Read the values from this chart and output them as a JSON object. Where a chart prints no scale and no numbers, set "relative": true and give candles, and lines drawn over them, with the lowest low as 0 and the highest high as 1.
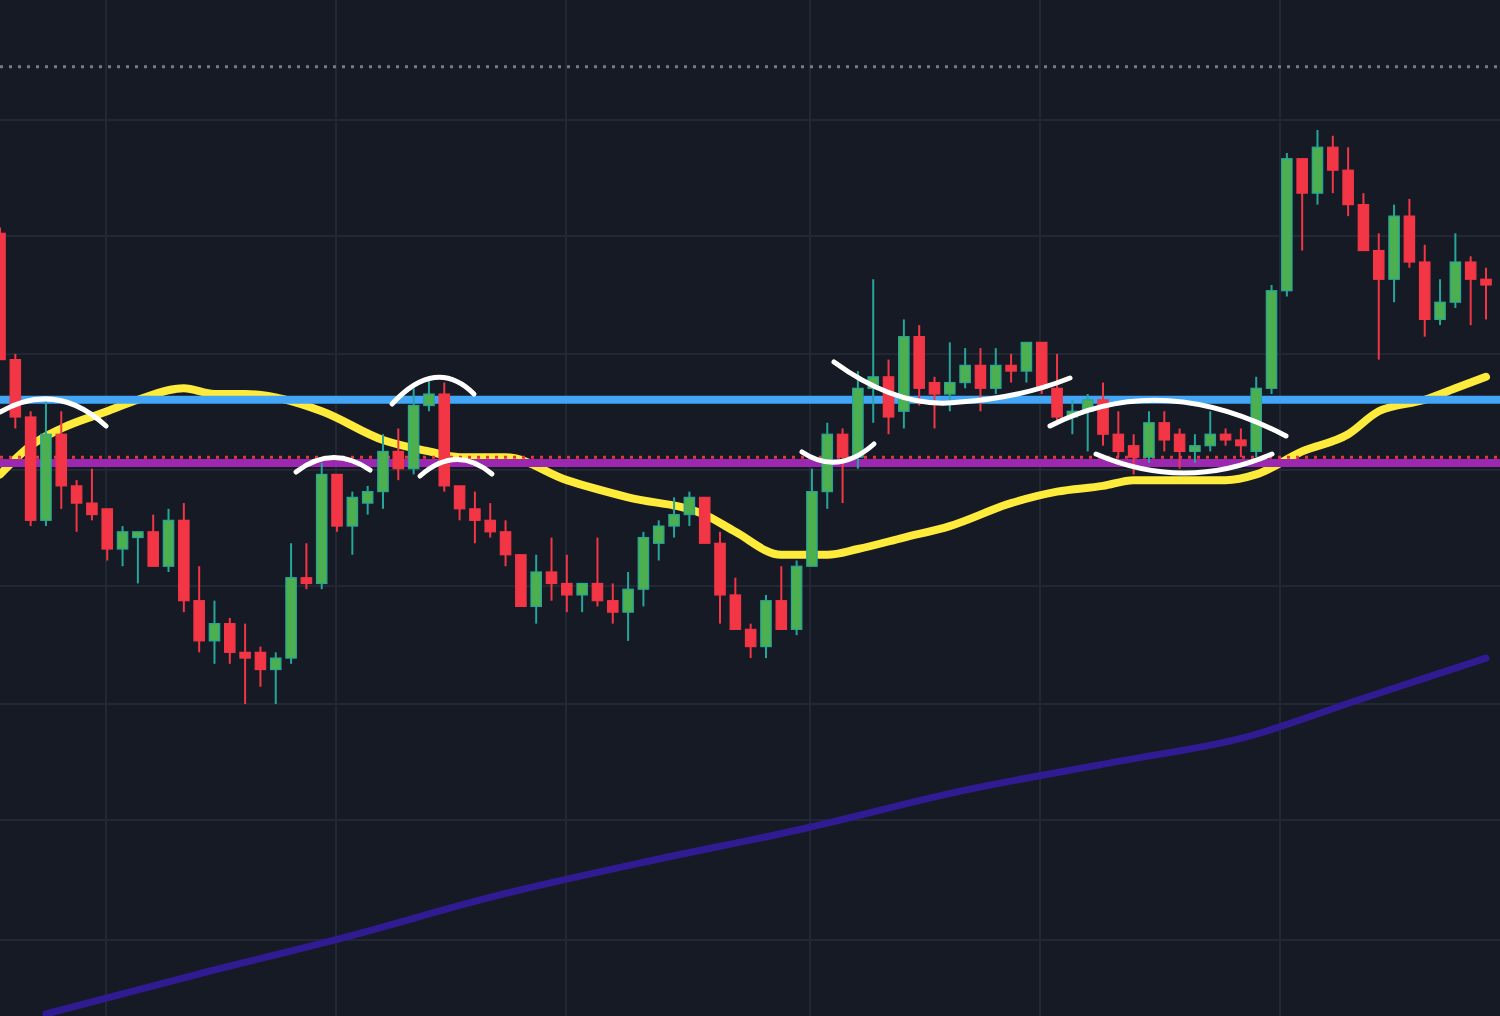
{
  "chart_data": {
    "type": "candlestick",
    "relative": true,
    "grid": true,
    "categories": [
      null,
      null,
      null,
      null,
      null,
      null,
      null,
      null,
      null,
      null,
      null,
      null,
      null,
      null,
      null,
      null,
      null,
      null,
      null,
      null,
      null,
      null,
      null,
      null,
      null,
      null,
      null,
      null,
      null,
      null,
      null,
      null,
      null,
      null,
      null,
      null,
      null,
      null,
      null,
      null,
      null,
      null,
      null,
      null,
      null,
      null,
      null,
      null,
      null,
      null,
      null,
      null,
      null,
      null,
      null,
      null,
      null,
      null,
      null,
      null,
      null,
      null,
      null,
      null,
      null,
      null,
      null,
      null,
      null,
      null,
      null,
      null,
      null,
      null,
      null,
      null,
      null,
      null,
      null,
      null,
      null,
      null,
      null,
      null,
      null,
      null,
      null,
      null,
      null,
      null,
      null,
      null,
      null,
      null,
      null,
      null,
      null,
      null
    ],
    "ohlc": [
      [
        0.82,
        0.83,
        0.6,
        0.6
      ],
      [
        0.6,
        0.61,
        0.48,
        0.5
      ],
      [
        0.5,
        0.51,
        0.31,
        0.32
      ],
      [
        0.32,
        0.53,
        0.31,
        0.47
      ],
      [
        0.47,
        0.51,
        0.34,
        0.38
      ],
      [
        0.38,
        0.39,
        0.3,
        0.35
      ],
      [
        0.35,
        0.41,
        0.32,
        0.33
      ],
      [
        0.34,
        0.34,
        0.25,
        0.27
      ],
      [
        0.27,
        0.31,
        0.24,
        0.3
      ],
      [
        0.29,
        0.3,
        0.21,
        0.3
      ],
      [
        0.3,
        0.33,
        0.24,
        0.24
      ],
      [
        0.24,
        0.34,
        0.23,
        0.32
      ],
      [
        0.32,
        0.35,
        0.16,
        0.18
      ],
      [
        0.18,
        0.24,
        0.09,
        0.11
      ],
      [
        0.11,
        0.18,
        0.07,
        0.14
      ],
      [
        0.14,
        0.15,
        0.07,
        0.09
      ],
      [
        0.09,
        0.14,
        0.0,
        0.08
      ],
      [
        0.09,
        0.1,
        0.03,
        0.06
      ],
      [
        0.06,
        0.09,
        0.0,
        0.08
      ],
      [
        0.08,
        0.28,
        0.07,
        0.22
      ],
      [
        0.22,
        0.28,
        0.2,
        0.21
      ],
      [
        0.21,
        0.42,
        0.2,
        0.4
      ],
      [
        0.4,
        0.4,
        0.3,
        0.31
      ],
      [
        0.31,
        0.37,
        0.26,
        0.36
      ],
      [
        0.35,
        0.38,
        0.33,
        0.37
      ],
      [
        0.37,
        0.47,
        0.34,
        0.44
      ],
      [
        0.44,
        0.48,
        0.39,
        0.41
      ],
      [
        0.41,
        0.55,
        0.4,
        0.52
      ],
      [
        0.52,
        0.57,
        0.51,
        0.54
      ],
      [
        0.54,
        0.56,
        0.37,
        0.38
      ],
      [
        0.38,
        0.38,
        0.32,
        0.34
      ],
      [
        0.34,
        0.37,
        0.28,
        0.32
      ],
      [
        0.32,
        0.35,
        0.29,
        0.3
      ],
      [
        0.3,
        0.32,
        0.24,
        0.26
      ],
      [
        0.26,
        0.26,
        0.17,
        0.17
      ],
      [
        0.17,
        0.26,
        0.14,
        0.23
      ],
      [
        0.23,
        0.29,
        0.18,
        0.21
      ],
      [
        0.21,
        0.26,
        0.16,
        0.19
      ],
      [
        0.19,
        0.21,
        0.16,
        0.21
      ],
      [
        0.21,
        0.29,
        0.17,
        0.18
      ],
      [
        0.18,
        0.21,
        0.14,
        0.16
      ],
      [
        0.16,
        0.23,
        0.11,
        0.2
      ],
      [
        0.2,
        0.3,
        0.17,
        0.29
      ],
      [
        0.28,
        0.32,
        0.25,
        0.31
      ],
      [
        0.31,
        0.36,
        0.29,
        0.33
      ],
      [
        0.33,
        0.37,
        0.31,
        0.36
      ],
      [
        0.36,
        0.36,
        0.28,
        0.28
      ],
      [
        0.28,
        0.3,
        0.14,
        0.19
      ],
      [
        0.19,
        0.22,
        0.13,
        0.13
      ],
      [
        0.13,
        0.14,
        0.08,
        0.1
      ],
      [
        0.1,
        0.19,
        0.08,
        0.18
      ],
      [
        0.18,
        0.24,
        0.13,
        0.13
      ],
      [
        0.13,
        0.25,
        0.12,
        0.24
      ],
      [
        0.24,
        0.41,
        0.24,
        0.37
      ],
      [
        0.37,
        0.49,
        0.34,
        0.47
      ],
      [
        0.47,
        0.48,
        0.35,
        0.43
      ],
      [
        0.43,
        0.58,
        0.41,
        0.55
      ],
      [
        0.55,
        0.74,
        0.49,
        0.57
      ],
      [
        0.57,
        0.6,
        0.47,
        0.5
      ],
      [
        0.51,
        0.67,
        0.48,
        0.64
      ],
      [
        0.64,
        0.66,
        0.52,
        0.55
      ],
      [
        0.56,
        0.57,
        0.48,
        0.54
      ],
      [
        0.54,
        0.63,
        0.51,
        0.56
      ],
      [
        0.56,
        0.62,
        0.55,
        0.59
      ],
      [
        0.59,
        0.62,
        0.51,
        0.55
      ],
      [
        0.55,
        0.62,
        0.54,
        0.59
      ],
      [
        0.59,
        0.61,
        0.56,
        0.58
      ],
      [
        0.58,
        0.63,
        0.56,
        0.63
      ],
      [
        0.63,
        0.63,
        0.54,
        0.55
      ],
      [
        0.55,
        0.61,
        0.49,
        0.5
      ],
      [
        0.5,
        0.53,
        0.47,
        0.51
      ],
      [
        0.51,
        0.54,
        0.44,
        0.53
      ],
      [
        0.53,
        0.56,
        0.45,
        0.47
      ],
      [
        0.47,
        0.51,
        0.43,
        0.44
      ],
      [
        0.45,
        0.47,
        0.4,
        0.43
      ],
      [
        0.43,
        0.51,
        0.42,
        0.49
      ],
      [
        0.49,
        0.51,
        0.44,
        0.46
      ],
      [
        0.47,
        0.48,
        0.41,
        0.44
      ],
      [
        0.44,
        0.47,
        0.42,
        0.45
      ],
      [
        0.45,
        0.51,
        0.44,
        0.47
      ],
      [
        0.47,
        0.48,
        0.45,
        0.46
      ],
      [
        0.46,
        0.48,
        0.43,
        0.45
      ],
      [
        0.44,
        0.57,
        0.43,
        0.55
      ],
      [
        0.55,
        0.73,
        0.54,
        0.72
      ],
      [
        0.72,
        0.96,
        0.71,
        0.95
      ],
      [
        0.95,
        0.95,
        0.79,
        0.89
      ],
      [
        0.89,
        1.0,
        0.87,
        0.97
      ],
      [
        0.97,
        0.99,
        0.89,
        0.93
      ],
      [
        0.93,
        0.97,
        0.85,
        0.87
      ],
      [
        0.87,
        0.89,
        0.79,
        0.79
      ],
      [
        0.79,
        0.82,
        0.6,
        0.74
      ],
      [
        0.74,
        0.87,
        0.7,
        0.85
      ],
      [
        0.85,
        0.88,
        0.76,
        0.77
      ],
      [
        0.77,
        0.8,
        0.64,
        0.67
      ],
      [
        0.67,
        0.74,
        0.66,
        0.7
      ],
      [
        0.7,
        0.82,
        0.69,
        0.77
      ],
      [
        0.77,
        0.78,
        0.66,
        0.74
      ],
      [
        0.74,
        0.76,
        0.67,
        0.73
      ]
    ],
    "series": [
      {
        "type": "line",
        "color": "#ffeb3b",
        "values": [
          0.4,
          null,
          0.45,
          null,
          0.48,
          null,
          null,
          0.51,
          null,
          0.53,
          null,
          null,
          0.55,
          null,
          0.54,
          null,
          0.54,
          null,
          null,
          null,
          null,
          0.51,
          null,
          null,
          null,
          0.46,
          null,
          null,
          0.44,
          null,
          0.43,
          null,
          null,
          0.43,
          null,
          null,
          null,
          0.39,
          null,
          null,
          null,
          0.36,
          null,
          null,
          null,
          null,
          0.33,
          null,
          0.3,
          null,
          null,
          0.26,
          null,
          null,
          0.26,
          null,
          0.27,
          null,
          null,
          0.29,
          null,
          null,
          0.31,
          null,
          null,
          null,
          0.35,
          null,
          null,
          0.37,
          null,
          null,
          0.38,
          null,
          0.39,
          null,
          null,
          null,
          null,
          null,
          0.39,
          null,
          0.4,
          null,
          null,
          0.44,
          null,
          null,
          0.47,
          null,
          0.51,
          null,
          null,
          0.53,
          null,
          0.55,
          null,
          0.57
        ]
      },
      {
        "type": "line",
        "color": "#311b92",
        "values": [
          null,
          null,
          null,
          -0.54,
          null,
          null,
          null,
          null,
          null,
          null,
          null,
          null,
          null,
          -0.47,
          null,
          null,
          null,
          null,
          null,
          null,
          null,
          null,
          -0.41,
          null,
          null,
          null,
          null,
          null,
          null,
          null,
          null,
          null,
          null,
          -0.33,
          null,
          null,
          null,
          null,
          null,
          null,
          null,
          null,
          null,
          -0.27,
          null,
          null,
          null,
          null,
          null,
          null,
          null,
          null,
          -0.22,
          null,
          null,
          null,
          null,
          null,
          null,
          null,
          null,
          null,
          null,
          -0.15,
          null,
          null,
          null,
          null,
          null,
          null,
          null,
          null,
          null,
          -0.1,
          null,
          null,
          null,
          null,
          null,
          null,
          null,
          -0.06,
          null,
          null,
          null,
          null,
          null,
          null,
          null,
          0.01,
          null,
          null,
          null,
          null,
          null,
          null,
          null,
          0.08
        ]
      }
    ],
    "ref_lines": [
      {
        "axis": "y",
        "value": 0.53,
        "color": "#42a5f5",
        "line_style": "solid"
      },
      {
        "axis": "y",
        "value": 0.42,
        "color": "#9c27b0",
        "line_style": "solid"
      },
      {
        "axis": "y",
        "value": 0.43,
        "color": "#e53935",
        "line_style": "dotted"
      },
      {
        "axis": "y",
        "value": 1.11,
        "color": "#787b86",
        "line_style": "dotted"
      }
    ]
  }
}
